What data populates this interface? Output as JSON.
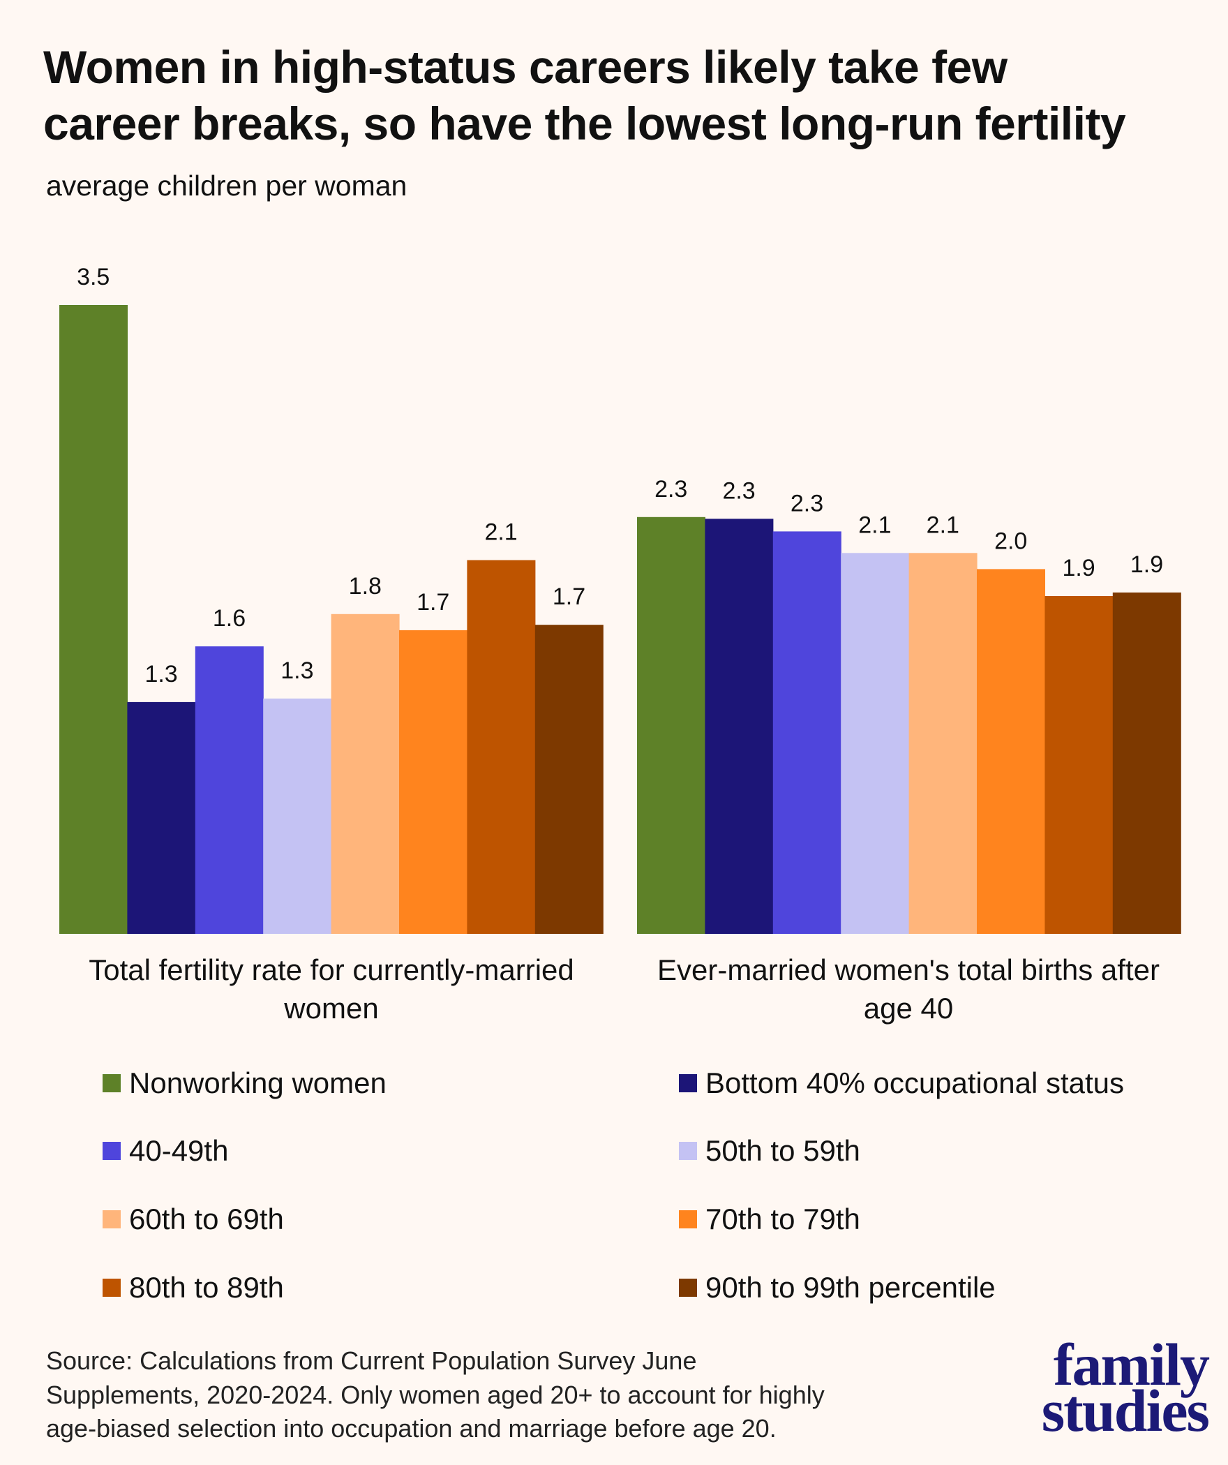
{
  "header": {
    "title_lines": [
      "Women in high-status careers likely take few",
      "career breaks, so have the lowest long-run fertility"
    ],
    "subtitle": "average children per woman"
  },
  "chart_data": {
    "type": "bar",
    "title": "Women in high-status careers likely take few career breaks, so have the lowest long-run fertility",
    "subtitle": "average children per woman",
    "xlabel": "",
    "ylabel": "average children per woman",
    "ylim": [
      0,
      3.5
    ],
    "grid": false,
    "legend_position": "bottom",
    "categories": [
      "Total fertility rate for currently-married women",
      "Ever-married women's total births after age 40"
    ],
    "category_label_lines": [
      [
        "Total fertility rate for currently-married",
        "women"
      ],
      [
        "Ever-married women's total births after",
        "age 40"
      ]
    ],
    "series": [
      {
        "name": "Nonworking women",
        "color": "#5E8128",
        "values": [
          3.5,
          2.3
        ]
      },
      {
        "name": "Bottom 40% occupational status",
        "color": "#1C1577",
        "values": [
          1.3,
          2.3
        ]
      },
      {
        "name": "40-49th",
        "color": "#4F45DC",
        "values": [
          1.6,
          2.3
        ]
      },
      {
        "name": "50th to 59th",
        "color": "#C4C2F3",
        "values": [
          1.3,
          2.1
        ]
      },
      {
        "name": "60th to 69th",
        "color": "#FFB57B",
        "values": [
          1.8,
          2.1
        ]
      },
      {
        "name": "70th to 79th",
        "color": "#FF841E",
        "values": [
          1.7,
          2.0
        ]
      },
      {
        "name": "80th to 89th",
        "color": "#BE5400",
        "values": [
          2.1,
          1.9
        ]
      },
      {
        "name": "90th to 99th percentile",
        "color": "#7D3900",
        "values": [
          1.7,
          1.9
        ]
      }
    ],
    "plotted_values_estimated": [
      [
        3.5,
        1.29,
        1.6,
        1.31,
        1.78,
        1.69,
        2.08,
        1.72
      ],
      [
        2.32,
        2.31,
        2.24,
        2.12,
        2.12,
        2.03,
        1.88,
        1.9
      ]
    ],
    "data_labels": [
      [
        "3.5",
        "1.3",
        "1.6",
        "1.3",
        "1.8",
        "1.7",
        "2.1",
        "1.7"
      ],
      [
        "2.3",
        "2.3",
        "2.3",
        "2.1",
        "2.1",
        "2.0",
        "1.9",
        "1.9"
      ]
    ]
  },
  "footer": {
    "source_lines": [
      "Source: Calculations from Current Population Survey June",
      "Supplements, 2020-2024. Only women aged 20+ to account for highly",
      "age-biased selection into occupation and marriage before age 20."
    ],
    "logo_lines": [
      "family",
      "studies"
    ],
    "logo_color": "#1C1A77"
  },
  "colors": {
    "background": "#FFF8F3",
    "text": "#111111"
  }
}
